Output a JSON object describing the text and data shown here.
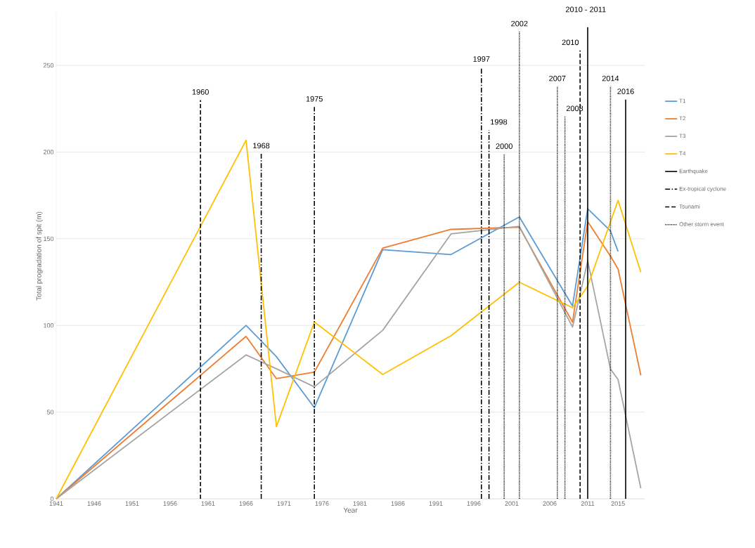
{
  "chart_data": {
    "type": "line",
    "xlabel": "Year",
    "ylabel": "Total progradation of spit (m)",
    "x": [
      1941,
      1966,
      1970,
      1975,
      1984,
      1993,
      2002,
      2009,
      2011,
      2014,
      2015,
      2018
    ],
    "xlim": [
      1941,
      2018.5
    ],
    "xticks": [
      1941,
      1946,
      1951,
      1956,
      1961,
      1966,
      1971,
      1976,
      1981,
      1986,
      1991,
      1996,
      2001,
      2006,
      2011,
      2015
    ],
    "ylim": [
      0,
      280
    ],
    "yticks": [
      0,
      50,
      100,
      150,
      200,
      250
    ],
    "grid": "y",
    "legend": "right",
    "marker": "none",
    "series": [
      {
        "name": "T1",
        "color": "#5b9bd5",
        "values": [
          0,
          100,
          82,
          52.6,
          143.7,
          140.9,
          162.6,
          111.2,
          167.3,
          154.5,
          142.7,
          null
        ]
      },
      {
        "name": "T2",
        "color": "#ed7d31",
        "values": [
          0,
          93.7,
          69.3,
          73.1,
          144.6,
          155.4,
          156.7,
          101.9,
          159.9,
          140,
          132.5,
          71.2
        ]
      },
      {
        "name": "T3",
        "color": "#a5a5a5",
        "values": [
          0,
          83,
          75,
          64.6,
          97.2,
          152.8,
          157.2,
          99.1,
          137.2,
          74.9,
          68.8,
          6.1
        ]
      },
      {
        "name": "T4",
        "color": "#ffc000",
        "x": [
          1941,
          1966,
          1970,
          1975,
          1984,
          1993,
          2002,
          2009,
          2011,
          2015,
          2018
        ],
        "values": [
          0,
          206.8,
          41.7,
          102,
          71.7,
          94.1,
          124.9,
          110.2,
          122.7,
          172.1,
          130.7
        ]
      },
      {
        "name": "Earthquake",
        "type": "line",
        "color": "#000000",
        "line_style": "solid",
        "x": [
          2011,
          2011,
          null,
          2016,
          2016
        ],
        "values": [
          0,
          272,
          null,
          0,
          230.3
        ]
      },
      {
        "name": "Ex-tropical cyclone",
        "type": "line",
        "color": "#000000",
        "line_style": "dashdot",
        "x": [
          1968,
          1968,
          null,
          1975,
          1975,
          null,
          1997,
          1997,
          null,
          1998,
          1998
        ],
        "values": [
          0,
          199,
          null,
          0,
          226,
          null,
          0,
          249,
          null,
          0,
          212.7
        ]
      },
      {
        "name": "Tsunami",
        "type": "line",
        "color": "#000000",
        "line_style": "dashed",
        "x": [
          1960,
          1960,
          null,
          2010,
          2010
        ],
        "values": [
          0,
          230,
          null,
          0,
          258.6
        ]
      },
      {
        "name": "Other storm event",
        "type": "line",
        "color": "#000000",
        "line_style": "dotted",
        "x": [
          2000,
          2000,
          null,
          2002,
          2002,
          null,
          2007,
          2007,
          null,
          2008,
          2008,
          null,
          2014,
          2014
        ],
        "values": [
          0,
          198.7,
          null,
          0,
          269.4,
          null,
          0,
          237.8,
          null,
          0,
          220.5,
          null,
          0,
          237.8
        ]
      }
    ],
    "annotations": [
      {
        "text": "1960",
        "x": 1960,
        "y": 230
      },
      {
        "text": "1968",
        "x": 1968,
        "y": 199
      },
      {
        "text": "1975",
        "x": 1975,
        "y": 226
      },
      {
        "text": "1997",
        "x": 1997,
        "y": 249
      },
      {
        "text": "1998",
        "x": 1998,
        "y": 212.7
      },
      {
        "text": "2000",
        "x": 2000,
        "y": 198.7
      },
      {
        "text": "2002",
        "x": 2002,
        "y": 269.4
      },
      {
        "text": "2007",
        "x": 2007,
        "y": 237.8
      },
      {
        "text": "2008",
        "x": 2008,
        "y": 220.5
      },
      {
        "text": "2010",
        "x": 2010,
        "y": 258.6
      },
      "2010 - 2011",
      {
        "text": "2014",
        "x": 2014,
        "y": 237.8
      },
      {
        "text": "2016",
        "x": 2016,
        "y": 230.3
      }
    ]
  }
}
